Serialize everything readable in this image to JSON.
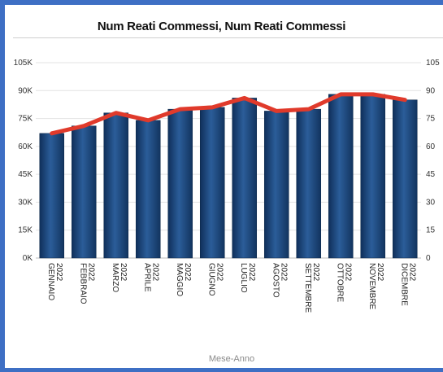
{
  "chart_data": {
    "type": "bar",
    "title": "Num Reati Commessi, Num Reati Commessi",
    "xlabel": "Mese-Anno",
    "ylabel": "",
    "ylim": [
      0,
      105000
    ],
    "yticks": [
      "0K",
      "15K",
      "30K",
      "45K",
      "60K",
      "75K",
      "90K",
      "105K"
    ],
    "yticks_right": [
      "0",
      "15",
      "30",
      "45",
      "60",
      "75",
      "90",
      "105"
    ],
    "grid": true,
    "categories": [
      "GENNAIO 2022",
      "FEBBRAIO 2022",
      "MARZO 2022",
      "APRILE 2022",
      "MAGGIO 2022",
      "GIUGNO 2022",
      "LUGLIO 2022",
      "AGOSTO 2022",
      "SETTEMBRE 2022",
      "OTTOBRE 2022",
      "NOVEMBRE 2022",
      "DICEMBRE 2022"
    ],
    "series": [
      {
        "type": "bar",
        "color": "#1f4e86",
        "values": [
          67000,
          71000,
          78000,
          74000,
          80000,
          81000,
          86000,
          79000,
          80000,
          88000,
          88000,
          85000
        ]
      },
      {
        "type": "line",
        "color": "#e03a2b",
        "values": [
          67000,
          71000,
          78000,
          74000,
          80000,
          81000,
          86000,
          79000,
          80000,
          88000,
          88000,
          85000
        ]
      }
    ]
  }
}
